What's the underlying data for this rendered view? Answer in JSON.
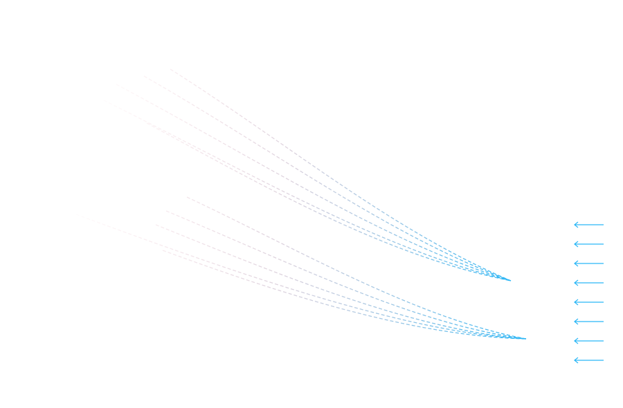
{
  "colors": {
    "background": "#ffffff",
    "stream_start": "#f4b6c2",
    "stream_end": "#29b6f6",
    "arrow": "#29b6f6"
  },
  "diagram": {
    "line_style": "dashed",
    "gradient": "pink-to-blue",
    "upper_fan": {
      "line_count": 5,
      "convergence": "right"
    },
    "lower_fan": {
      "line_count": 5,
      "convergence": "right"
    },
    "arrow_legend": {
      "count": 8,
      "icon": "left-arrow-icon",
      "direction": "left"
    }
  }
}
